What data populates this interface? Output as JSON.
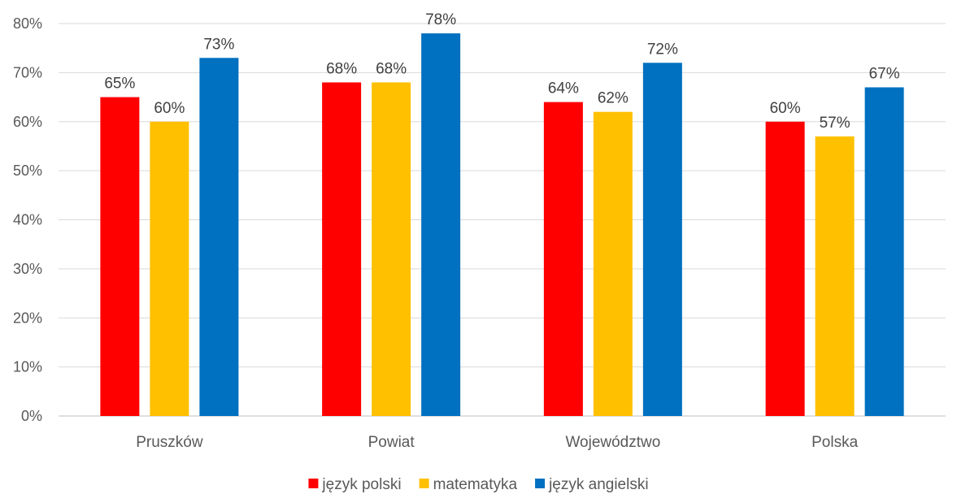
{
  "chart_data": {
    "type": "bar",
    "categories": [
      "Pruszków",
      "Powiat",
      "Województwo",
      "Polska"
    ],
    "series": [
      {
        "name": "język polski",
        "color": "#ff0000",
        "values": [
          65,
          68,
          64,
          60
        ]
      },
      {
        "name": "matematyka",
        "color": "#ffc000",
        "values": [
          60,
          68,
          62,
          57
        ]
      },
      {
        "name": "język angielski",
        "color": "#0070c0",
        "values": [
          73,
          78,
          72,
          67
        ]
      }
    ],
    "value_suffix": "%",
    "ylim": [
      0,
      80
    ],
    "yticks": [
      0,
      10,
      20,
      30,
      40,
      50,
      60,
      70,
      80
    ],
    "ytick_labels": [
      "0%",
      "10%",
      "20%",
      "30%",
      "40%",
      "50%",
      "60%",
      "70%",
      "80%"
    ],
    "grid": true,
    "legend": "bottom"
  }
}
